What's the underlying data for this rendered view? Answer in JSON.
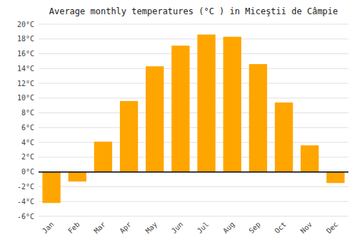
{
  "chart_data": {
    "type": "bar",
    "title": "Average monthly temperatures (°C ) in Miceştii de Câmpie",
    "categories": [
      "Jan",
      "Feb",
      "Mar",
      "Apr",
      "May",
      "Jun",
      "Jul",
      "Aug",
      "Sep",
      "Oct",
      "Nov",
      "Dec"
    ],
    "values": [
      -4.2,
      -1.3,
      4.1,
      9.6,
      14.3,
      17.1,
      18.6,
      18.3,
      14.6,
      9.4,
      3.6,
      -1.5
    ],
    "color": "#FFA500",
    "ylim": [
      -6,
      20
    ],
    "yticks": [
      {
        "value": -6,
        "label": "-6°C"
      },
      {
        "value": -4,
        "label": "-4°C"
      },
      {
        "value": -2,
        "label": "-2°C"
      },
      {
        "value": 0,
        "label": "0°C"
      },
      {
        "value": 2,
        "label": "2°C"
      },
      {
        "value": 4,
        "label": "4°C"
      },
      {
        "value": 6,
        "label": "6°C"
      },
      {
        "value": 8,
        "label": "8°C"
      },
      {
        "value": 10,
        "label": "10°C"
      },
      {
        "value": 12,
        "label": "12°C"
      },
      {
        "value": 14,
        "label": "14°C"
      },
      {
        "value": 16,
        "label": "16°C"
      },
      {
        "value": 18,
        "label": "18°C"
      },
      {
        "value": 20,
        "label": "20°C"
      }
    ],
    "grid": true
  }
}
